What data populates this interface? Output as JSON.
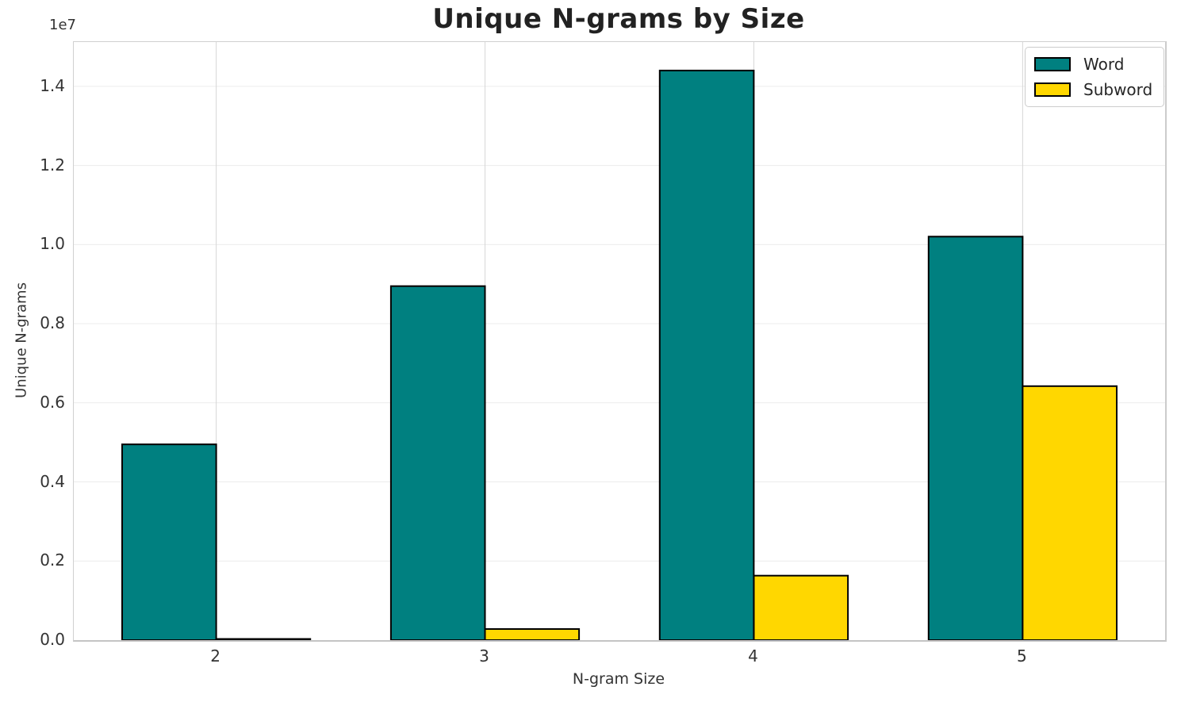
{
  "figure": {
    "title": "Unique N-grams by Size",
    "y_offset_text": "1e7"
  },
  "chart_data": {
    "type": "bar",
    "title": "Unique N-grams by Size",
    "xlabel": "N-gram Size",
    "ylabel": "Unique N-grams",
    "categories": [
      "2",
      "3",
      "4",
      "5"
    ],
    "series": [
      {
        "name": "Word",
        "color": "#008080",
        "values": [
          4950000,
          8950000,
          14400000,
          10200000
        ]
      },
      {
        "name": "Subword",
        "color": "#FFD700",
        "values": [
          30000,
          280000,
          1630000,
          6420000
        ]
      }
    ],
    "bar_edge_color": "#000000",
    "ylim": [
      0,
      15120000
    ],
    "yticks": {
      "values": [
        0,
        2000000,
        4000000,
        6000000,
        8000000,
        10000000,
        12000000,
        14000000
      ],
      "labels": [
        "0.0",
        "0.2",
        "0.4",
        "0.6",
        "0.8",
        "1.0",
        "1.2",
        "1.4"
      ]
    },
    "y_offset_text": "1e7",
    "grid": true,
    "legend_position": "upper right",
    "grid_color_horizontal": "#ececec",
    "grid_color_vertical": "#d6d6d6"
  }
}
